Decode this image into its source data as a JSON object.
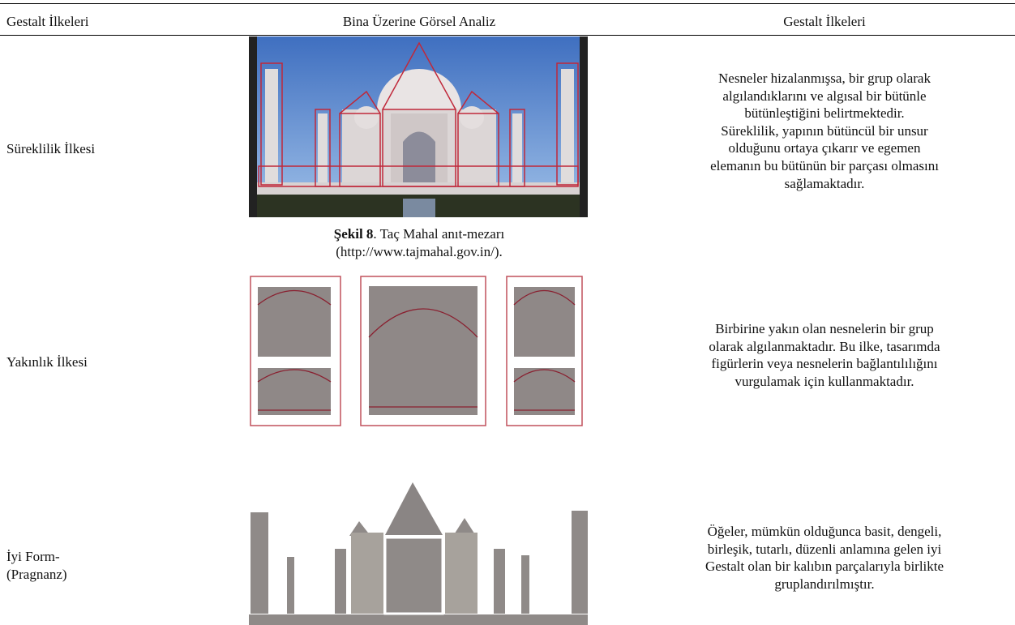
{
  "table": {
    "headers": [
      "Gestalt İlkeleri",
      "Bina Üzerine Görsel Analiz",
      "Gestalt İlkeleri"
    ],
    "rows": [
      {
        "principle": [
          "Süreklilik İlkesi"
        ],
        "caption": {
          "label": "Şekil 8",
          "text": ". Taç Mahal anıt-mezarı",
          "source": "(http://www.tajmahal.gov.in/)."
        },
        "description": [
          "Nesneler hizalanmışsa, bir grup olarak",
          "algılandıklarını ve algısal bir bütünle",
          "bütünleştiğini belirtmektedir.",
          "Süreklilik, yapının bütüncül bir unsur",
          "olduğunu ortaya çıkarır ve egemen",
          "elemanın bu bütünün bir parçası olmasını",
          "sağlamaktadır."
        ]
      },
      {
        "principle": [
          "Yakınlık İlkesi"
        ],
        "description": [
          "Birbirine yakın olan nesnelerin bir grup",
          "olarak algılanmaktadır. Bu ilke, tasarımda",
          "figürlerin veya nesnelerin bağlantılılığını",
          "vurgulamak için kullanmaktadır."
        ]
      },
      {
        "principle": [
          "İyi Form-",
          "(Pragnanz)"
        ],
        "description": [
          "Öğeler, mümkün olduğunca basit, dengeli,",
          "birleşik, tutarlı, düzenli anlamına gelen iyi",
          "Gestalt olan bir kalıbın parçalarıyla birlikte",
          "gruplandırılmıştır."
        ]
      }
    ]
  }
}
